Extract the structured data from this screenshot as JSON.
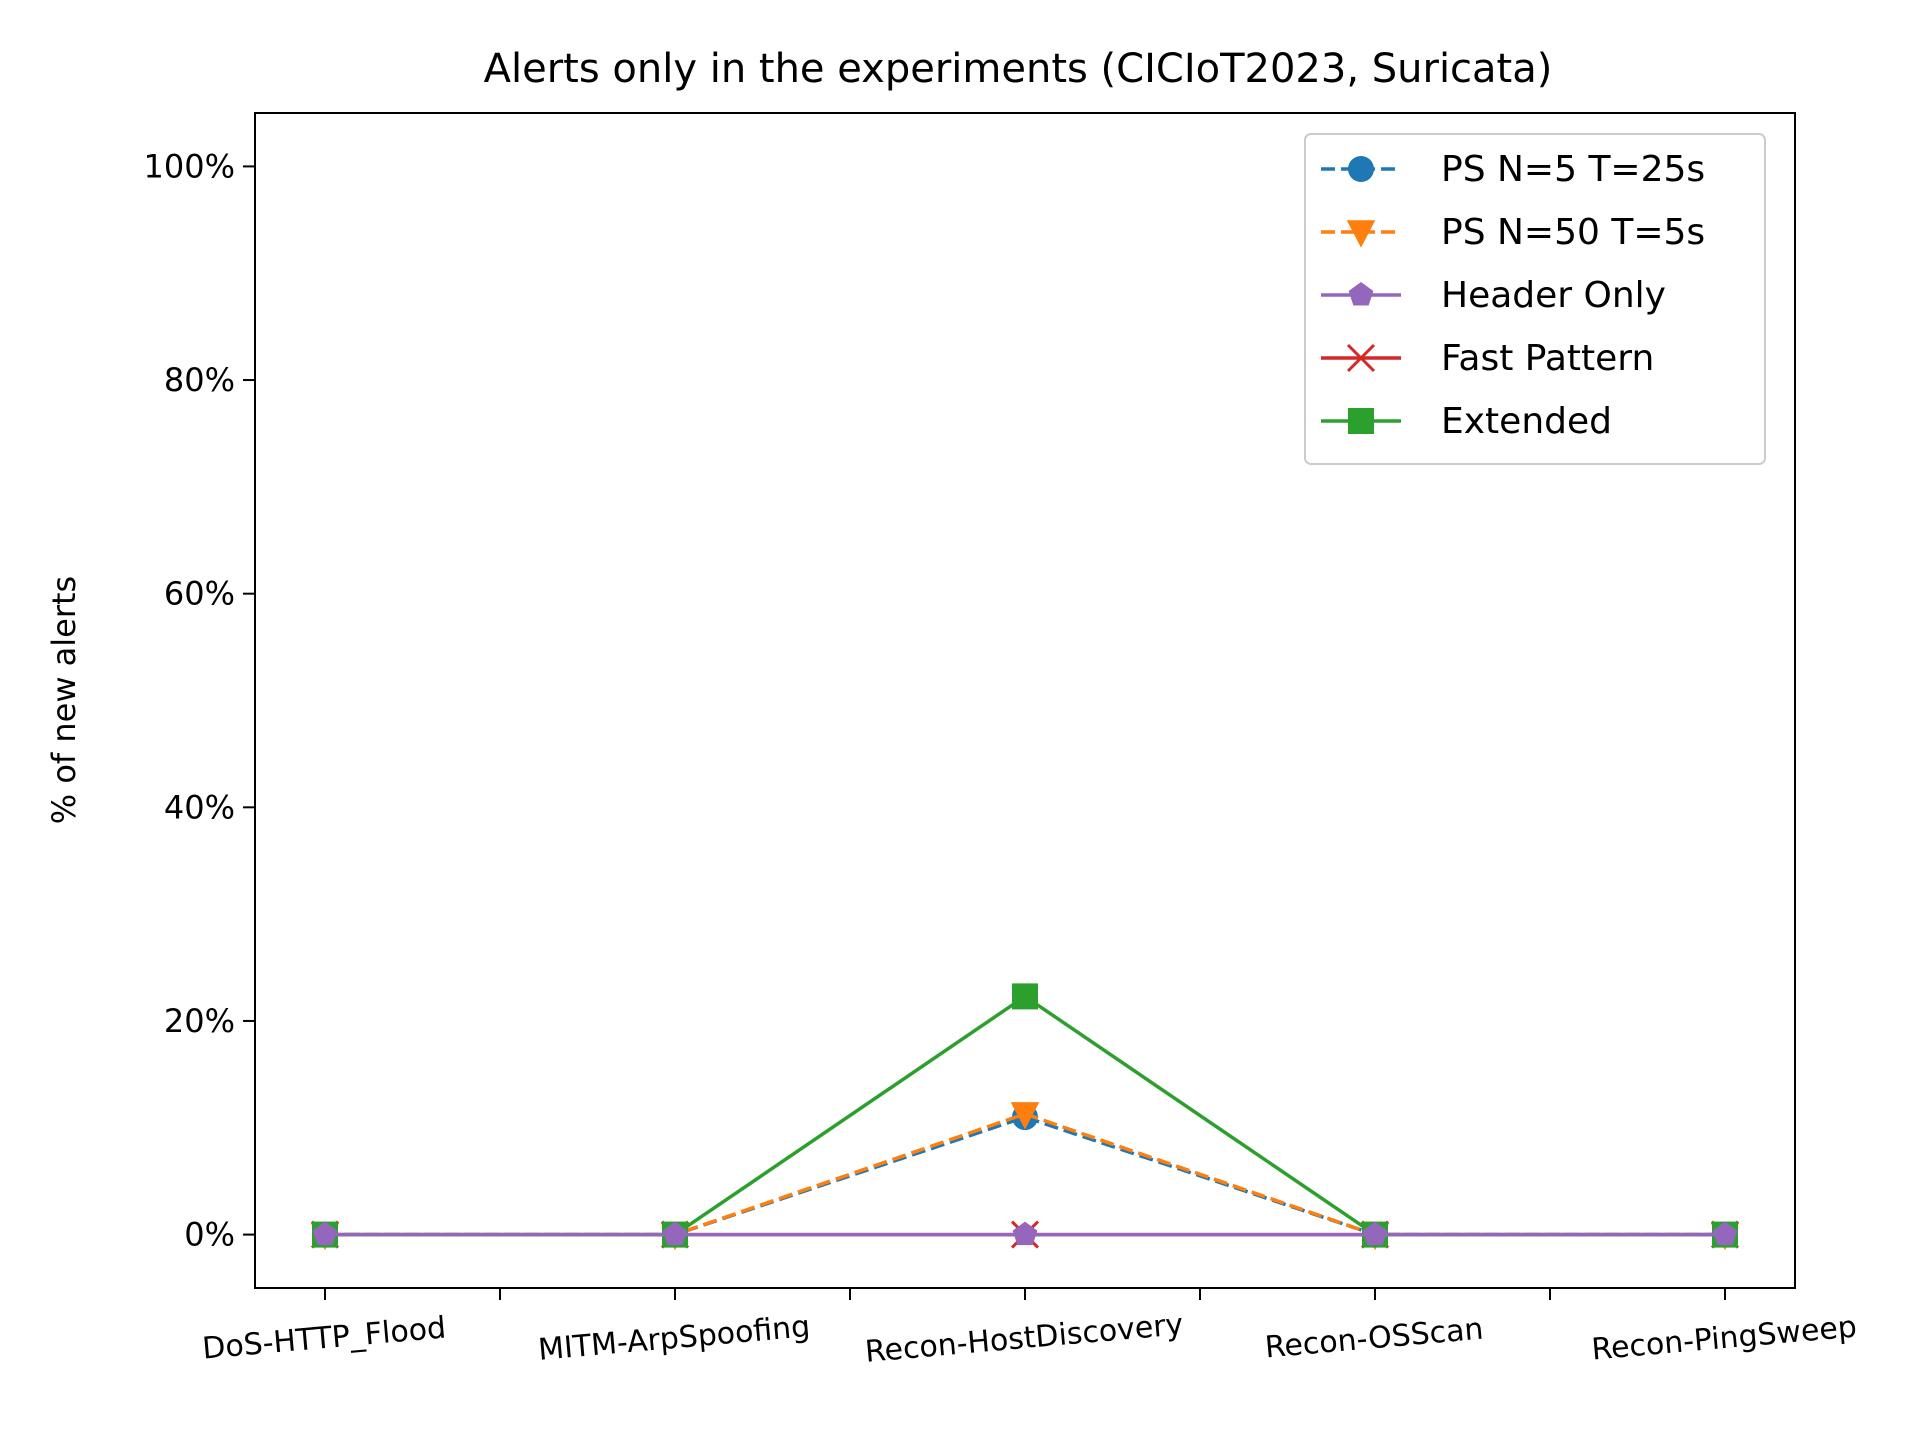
{
  "chart_data": {
    "type": "line",
    "title": "Alerts only in the experiments (CICIoT2023, Suricata)",
    "xlabel": "",
    "ylabel": "% of new alerts",
    "categories": [
      "DoS-HTTP_Flood",
      "MITM-ArpSpoofing",
      "Recon-HostDiscovery",
      "Recon-OSScan",
      "Recon-PingSweep"
    ],
    "x_ticks": [
      0,
      0.5,
      1,
      1.5,
      2,
      2.5,
      3,
      3.5,
      4
    ],
    "x_range": [
      -0.2,
      4.2
    ],
    "ylim": [
      -5,
      105
    ],
    "y_ticks": [
      0,
      20,
      40,
      60,
      80,
      100
    ],
    "y_tick_labels": [
      "0%",
      "20%",
      "40%",
      "60%",
      "80%",
      "100%"
    ],
    "grid": false,
    "legend_position": "top-right",
    "series": [
      {
        "name": "PS N=5 T=25s",
        "values": [
          0,
          0,
          11,
          0,
          0
        ],
        "color": "#1f77b4",
        "marker": "circle",
        "line_style": "dashed"
      },
      {
        "name": "PS N=50 T=5s",
        "values": [
          0,
          0,
          11.3,
          0,
          0
        ],
        "color": "#ff7f0e",
        "marker": "triangle-down",
        "line_style": "dashed"
      },
      {
        "name": "Header Only",
        "values": [
          0,
          0,
          0,
          0,
          0
        ],
        "color": "#9467bd",
        "marker": "pentagon",
        "line_style": "solid"
      },
      {
        "name": "Fast Pattern",
        "values": [
          0,
          0,
          0,
          0,
          0
        ],
        "color": "#d62728",
        "marker": "x",
        "line_style": "solid"
      },
      {
        "name": "Extended",
        "values": [
          0,
          0,
          22.3,
          0,
          0
        ],
        "color": "#2ca02c",
        "marker": "square",
        "line_style": "solid"
      }
    ]
  }
}
